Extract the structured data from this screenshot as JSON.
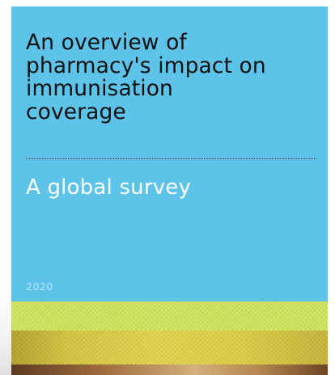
{
  "cover": {
    "title_lines": [
      "An overview of",
      "pharmacy's impact on",
      "immunisation",
      "coverage"
    ],
    "subtitle": "A global survey",
    "year": "2020"
  },
  "colors": {
    "cover_background": "#5ec3e8",
    "title_text": "#111111",
    "subtitle_text": "#ffffff",
    "year_text": "#b9e5f6",
    "photo_green": "#cde15a",
    "photo_yellow": "#e0d24c",
    "photo_brown": "#7b5230"
  }
}
